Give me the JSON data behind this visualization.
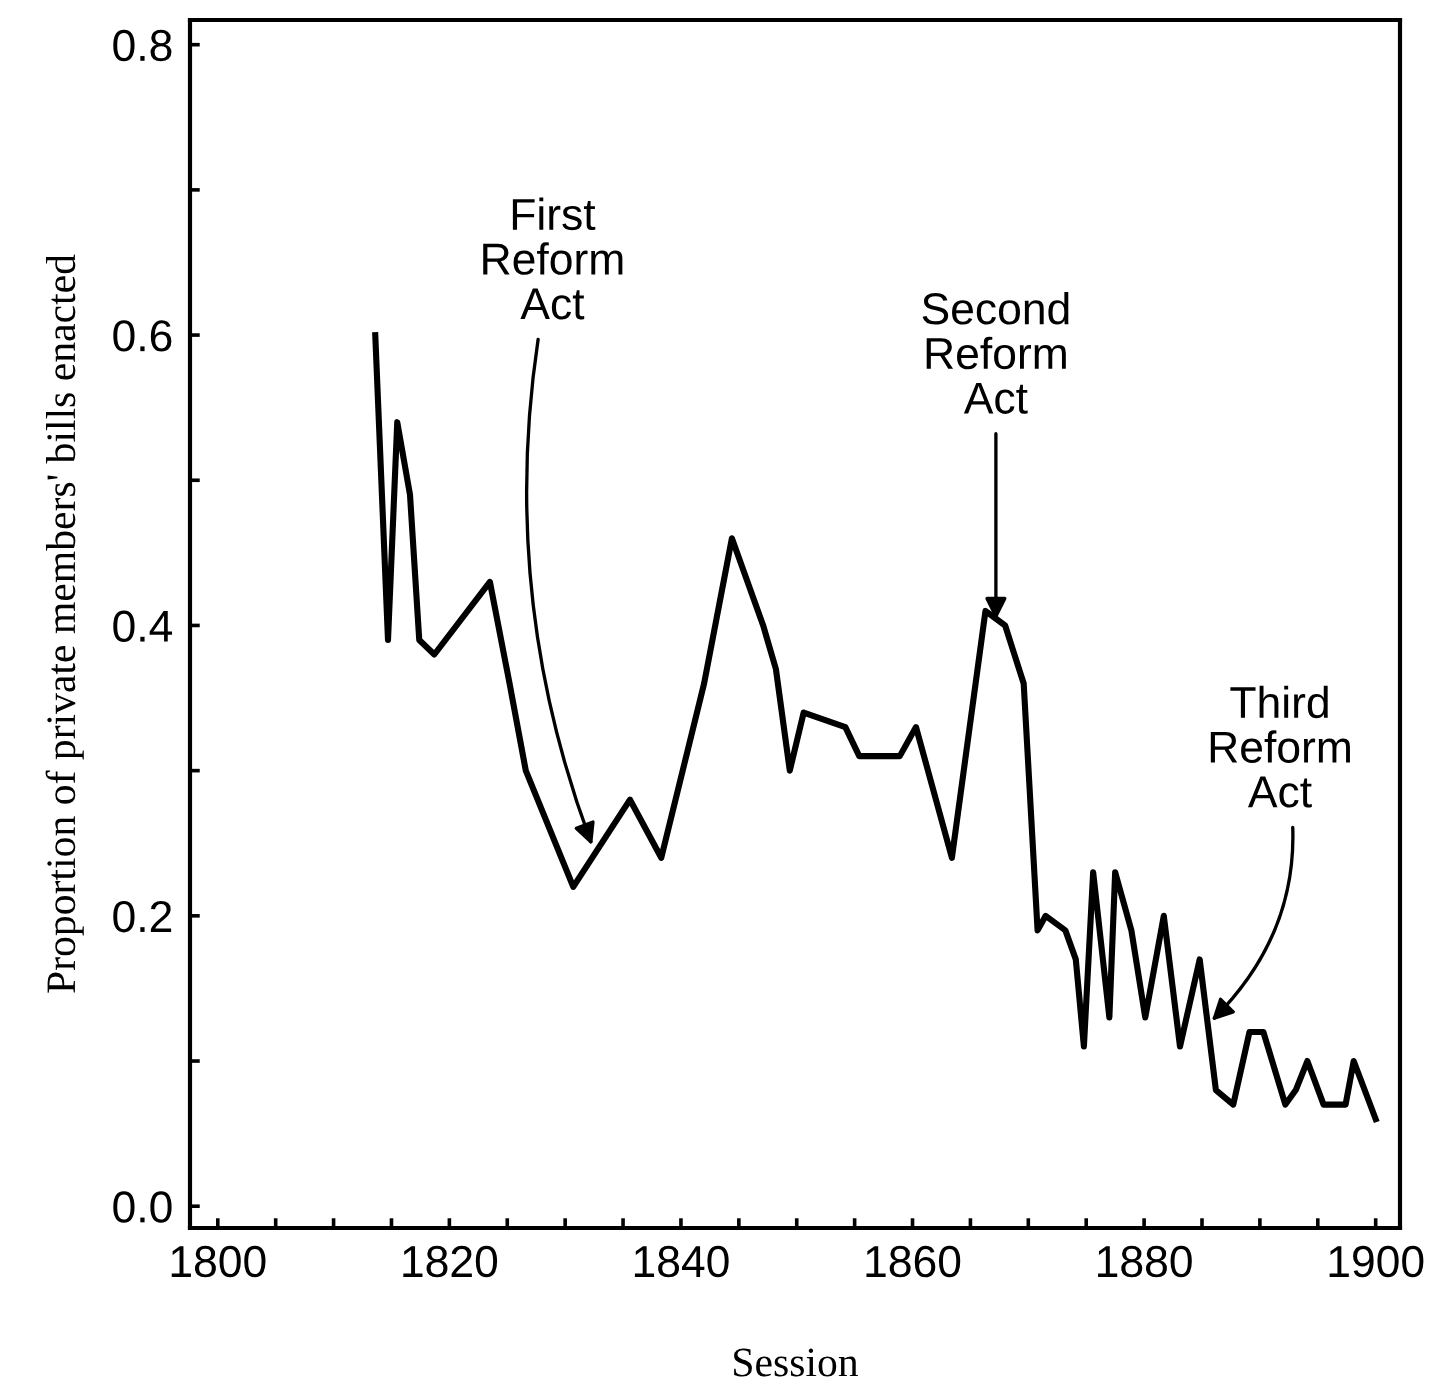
{
  "chart_data": {
    "type": "line",
    "xlabel": "Session",
    "ylabel": "Proportion of private members' bills enacted",
    "x": [
      1813.6,
      1814.7,
      1815.5,
      1816.6,
      1817.4,
      1818.7,
      1823.5,
      1825.2,
      1826.6,
      1830.7,
      1835.6,
      1838.3,
      1842,
      1844.4,
      1847.1,
      1848.2,
      1849.4,
      1850.6,
      1854.2,
      1855.4,
      1858.9,
      1860.3,
      1863.4,
      1866.3,
      1868,
      1869.6,
      1870.8,
      1871.5,
      1873.2,
      1874.1,
      1874.8,
      1875.6,
      1877,
      1877.5,
      1878.9,
      1880.1,
      1881.7,
      1883.1,
      1884.8,
      1886.2,
      1887.7,
      1889.1,
      1890.3,
      1892.2,
      1893.1,
      1894.1,
      1895.5,
      1896.5,
      1897.4,
      1898.1,
      1900
    ],
    "series": [
      {
        "color": "#000000",
        "values": [
          0.6,
          0.39,
          0.54,
          0.49,
          0.39,
          0.38,
          0.43,
          0.36,
          0.3,
          0.22,
          0.28,
          0.24,
          0.36,
          0.46,
          0.4,
          0.37,
          0.3,
          0.34,
          0.33,
          0.31,
          0.31,
          0.33,
          0.24,
          0.41,
          0.4,
          0.36,
          0.19,
          0.2,
          0.19,
          0.17,
          0.11,
          0.23,
          0.13,
          0.23,
          0.19,
          0.13,
          0.2,
          0.11,
          0.17,
          0.08,
          0.07,
          0.12,
          0.12,
          0.07,
          0.08,
          0.1,
          0.07,
          0.07,
          0.07,
          0.1,
          0.06
        ]
      }
    ],
    "xlim": [
      1797.6,
      1902.1
    ],
    "ylim": [
      -0.015,
      0.817
    ],
    "xticks": [
      1800,
      {
        "value": 1805,
        "label": null
      },
      {
        "value": 1810,
        "label": null
      },
      {
        "value": 1815,
        "label": null
      },
      1820,
      {
        "value": 1825,
        "label": null
      },
      {
        "value": 1830,
        "label": null
      },
      {
        "value": 1835,
        "label": null
      },
      1840,
      {
        "value": 1845,
        "label": null
      },
      {
        "value": 1850,
        "label": null
      },
      {
        "value": 1855,
        "label": null
      },
      1860,
      {
        "value": 1865,
        "label": null
      },
      {
        "value": 1870,
        "label": null
      },
      {
        "value": 1875,
        "label": null
      },
      1880,
      {
        "value": 1885,
        "label": null
      },
      {
        "value": 1890,
        "label": null
      },
      {
        "value": 1895,
        "label": null
      },
      1900
    ],
    "yticks": [
      {
        "value": 0,
        "label": "0.0"
      },
      {
        "value": 0.1,
        "label": null
      },
      {
        "value": 0.2,
        "label": "0.2"
      },
      {
        "value": 0.3,
        "label": null
      },
      {
        "value": 0.4,
        "label": "0.4"
      },
      {
        "value": 0.5,
        "label": null
      },
      {
        "value": 0.6,
        "label": "0.6"
      },
      {
        "value": 0.7,
        "label": null
      },
      {
        "value": 0.8,
        "label": "0.8"
      }
    ],
    "annotations": [
      {
        "text": "First\nReform\nAct",
        "x": 1832.5,
        "y": 0.245
      },
      {
        "text": "Second\nReform\nAct",
        "x": 1867.2,
        "y": 0.4
      },
      {
        "text": "Third\nReform\nAct",
        "x": 1885.5,
        "y": 0.125
      }
    ],
    "grid": false,
    "legend": false,
    "marker": "none",
    "line_style": "solid"
  }
}
